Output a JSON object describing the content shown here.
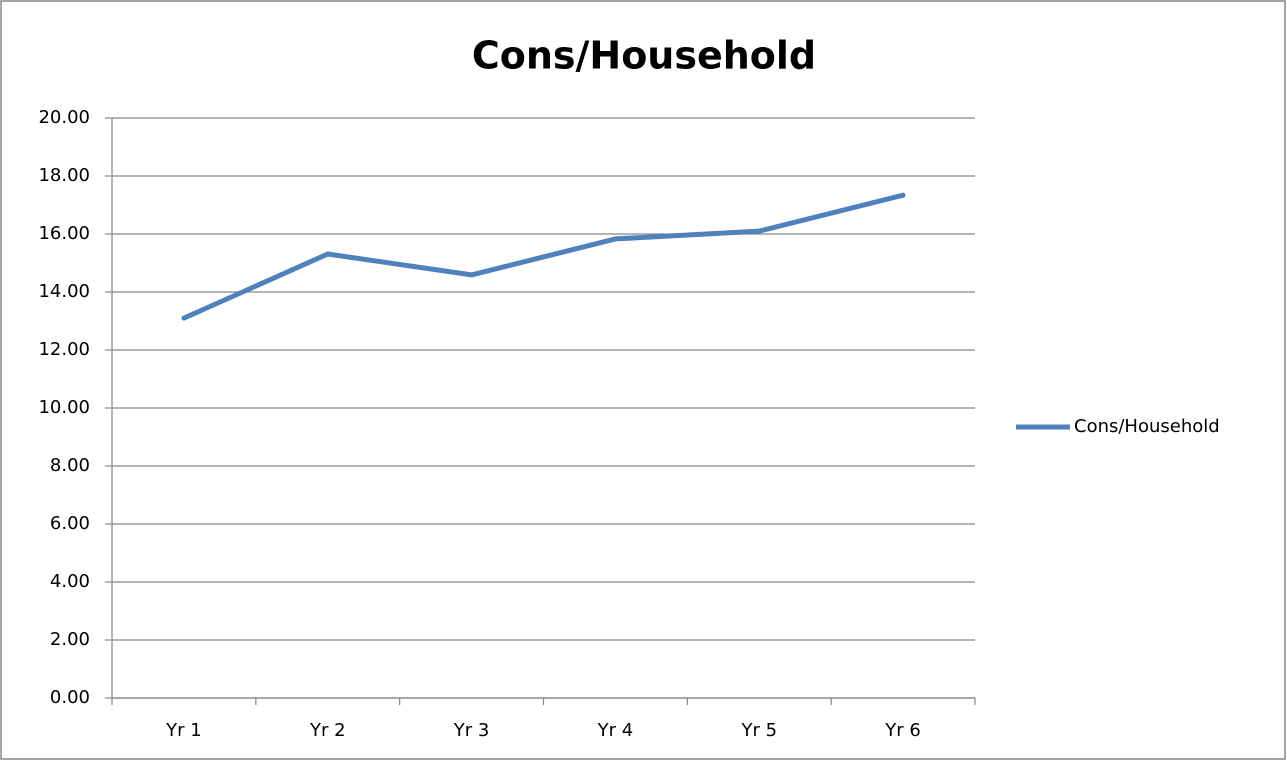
{
  "chart_data": {
    "type": "line",
    "title": "Cons/Household",
    "categories": [
      "Yr 1",
      "Yr 2",
      "Yr 3",
      "Yr 4",
      "Yr 5",
      "Yr 6"
    ],
    "series": [
      {
        "name": "Cons/Household",
        "color": "#4f81bd",
        "values": [
          13.1,
          15.31,
          14.59,
          15.83,
          16.1,
          17.34
        ]
      }
    ],
    "ylim": [
      0,
      20
    ],
    "yticks": [
      {
        "value": 0,
        "label": "0.00"
      },
      {
        "value": 2,
        "label": "2.00"
      },
      {
        "value": 4,
        "label": "4.00"
      },
      {
        "value": 6,
        "label": "6.00"
      },
      {
        "value": 8,
        "label": "8.00"
      },
      {
        "value": 10,
        "label": "10.00"
      },
      {
        "value": 12,
        "label": "12.00"
      },
      {
        "value": 14,
        "label": "14.00"
      },
      {
        "value": 16,
        "label": "16.00"
      },
      {
        "value": 18,
        "label": "18.00"
      },
      {
        "value": 20,
        "label": "20.00"
      }
    ],
    "grid": true,
    "legend": "right"
  }
}
